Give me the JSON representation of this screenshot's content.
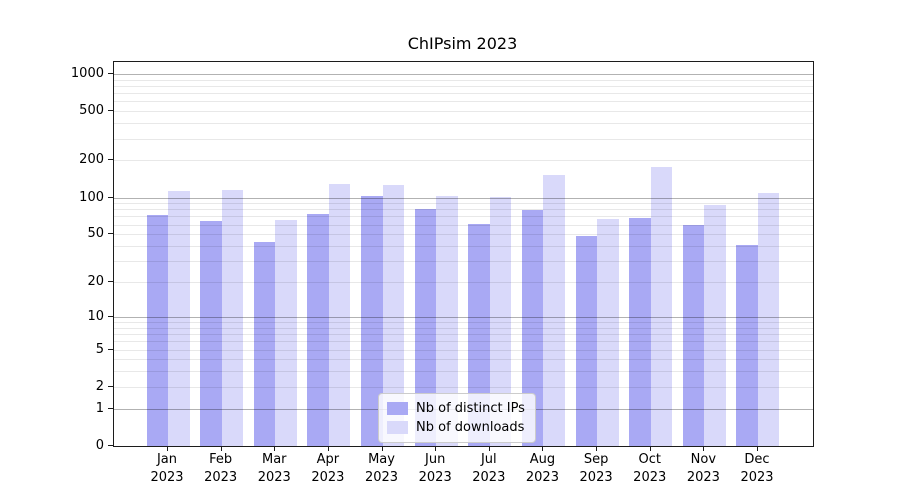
{
  "chart_data": {
    "type": "bar",
    "title": "ChIPsim 2023",
    "categories": [
      "Jan",
      "Feb",
      "Mar",
      "Apr",
      "May",
      "Jun",
      "Jul",
      "Aug",
      "Sep",
      "Oct",
      "Nov",
      "Dec"
    ],
    "x_tick_year": "2023",
    "series": [
      {
        "name": "Nb of distinct IPs",
        "color": "#a9a9f4",
        "values": [
          72,
          64,
          43,
          73,
          103,
          81,
          61,
          79,
          48,
          68,
          60,
          41
        ]
      },
      {
        "name": "Nb of downloads",
        "color": "#d9d9fa",
        "values": [
          112,
          115,
          65,
          128,
          126,
          103,
          101,
          152,
          67,
          177,
          87,
          108
        ]
      }
    ],
    "xlabel": "",
    "ylabel": "",
    "y_scale": "log1p",
    "ylim": [
      0,
      1250
    ],
    "y_ticks": [
      0,
      1,
      2,
      5,
      10,
      20,
      50,
      100,
      200,
      500,
      1000
    ],
    "y_major_gridlines": [
      1,
      10,
      100,
      1000
    ],
    "grid": true,
    "legend_position": "lower center",
    "legend_frame_color": "#cccccc",
    "grid_major_color": "#b3b3b3",
    "grid_minor_color": "#e9e9e9"
  }
}
